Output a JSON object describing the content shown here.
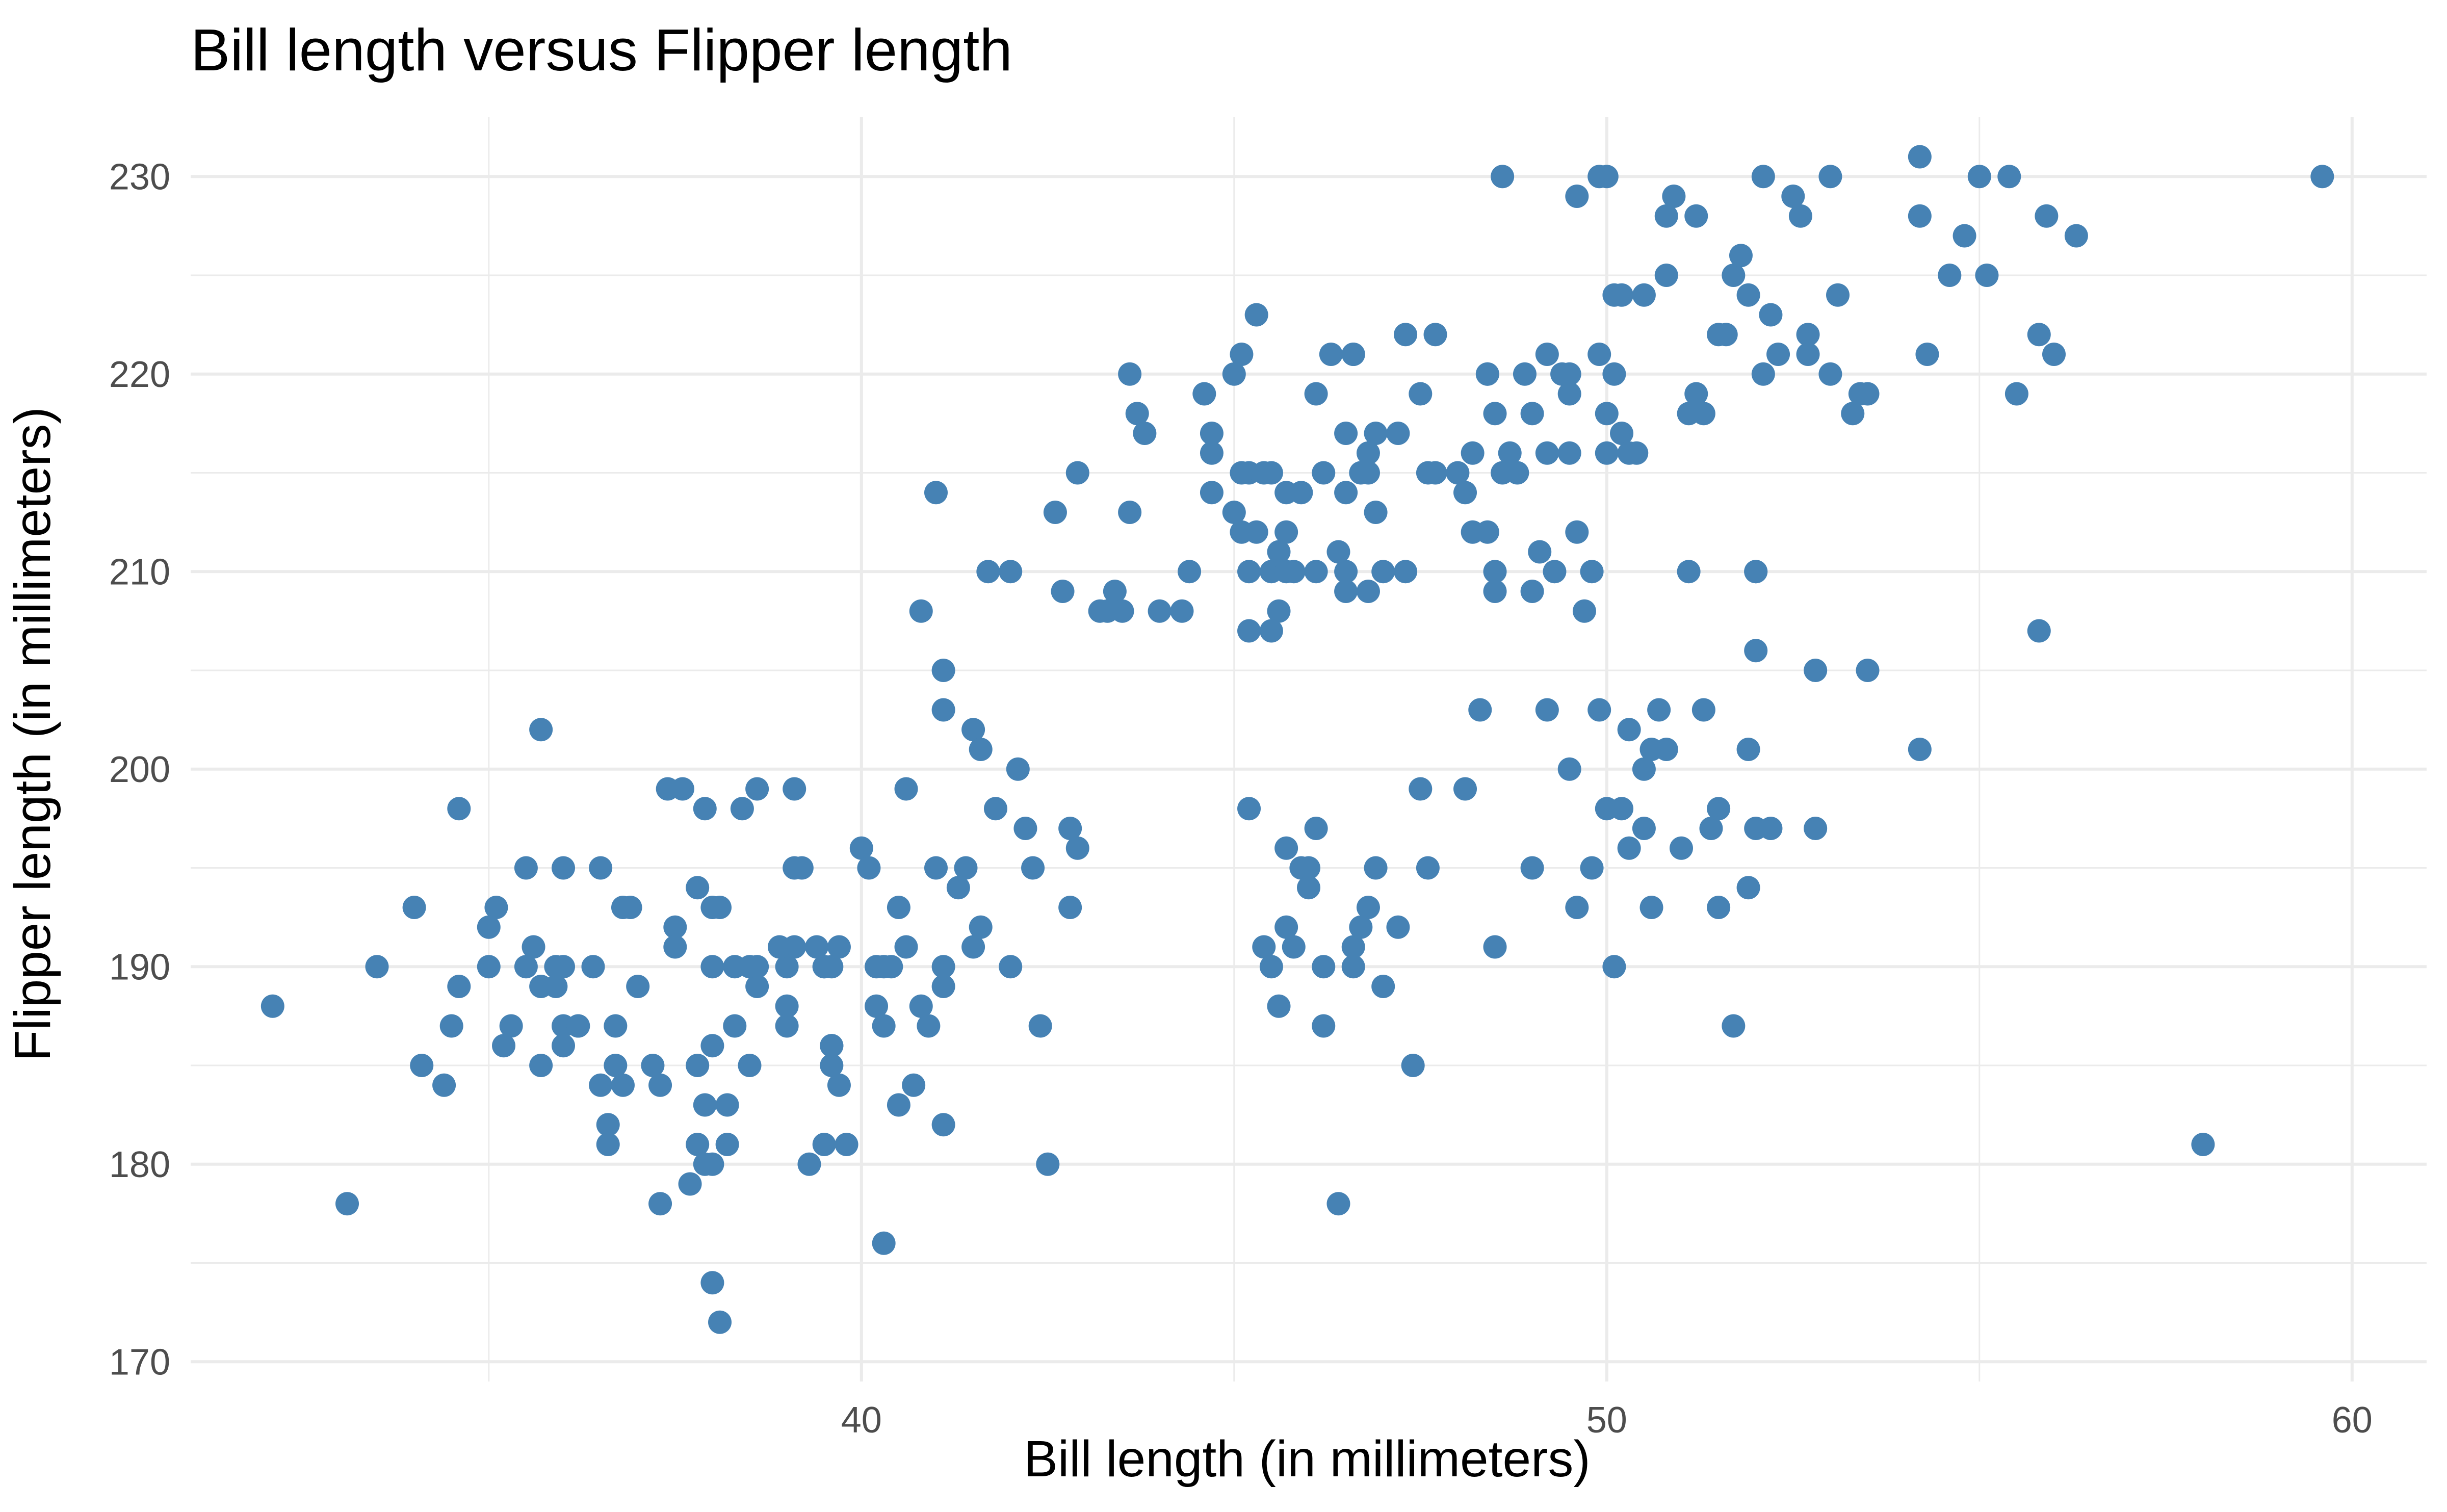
{
  "chart_data": {
    "type": "scatter",
    "title": "Bill length versus Flipper length",
    "xlabel": "Bill length (in millimeters)",
    "ylabel": "Flipper length (in millimeters)",
    "xlim": [
      31.0,
      61.0
    ],
    "ylim": [
      169.0,
      233.0
    ],
    "xticks": [
      40,
      50,
      60
    ],
    "xtick_labels": [
      "40",
      "50",
      "60"
    ],
    "yticks": [
      170,
      180,
      190,
      200,
      210,
      220,
      230
    ],
    "ytick_labels": [
      "170",
      "180",
      "190",
      "200",
      "210",
      "220",
      "230"
    ],
    "grid": true,
    "legend": "none",
    "point_color": "#4682b4",
    "points": [
      [
        32.1,
        188
      ],
      [
        33.1,
        178
      ],
      [
        33.5,
        190
      ],
      [
        34.0,
        193
      ],
      [
        34.1,
        185
      ],
      [
        34.4,
        184
      ],
      [
        34.5,
        187
      ],
      [
        34.6,
        198
      ],
      [
        34.6,
        189
      ],
      [
        35.0,
        190
      ],
      [
        35.0,
        192
      ],
      [
        35.1,
        193
      ],
      [
        35.2,
        186
      ],
      [
        35.3,
        187
      ],
      [
        35.5,
        195
      ],
      [
        35.5,
        190
      ],
      [
        35.6,
        191
      ],
      [
        35.7,
        202
      ],
      [
        35.7,
        189
      ],
      [
        35.7,
        185
      ],
      [
        35.9,
        190
      ],
      [
        35.9,
        189
      ],
      [
        36.0,
        195
      ],
      [
        36.0,
        190
      ],
      [
        36.0,
        187
      ],
      [
        36.0,
        186
      ],
      [
        36.2,
        187
      ],
      [
        36.2,
        187
      ],
      [
        36.4,
        190
      ],
      [
        36.5,
        195
      ],
      [
        36.5,
        184
      ],
      [
        36.6,
        182
      ],
      [
        36.6,
        181
      ],
      [
        36.7,
        187
      ],
      [
        36.7,
        185
      ],
      [
        36.8,
        193
      ],
      [
        36.8,
        184
      ],
      [
        36.9,
        193
      ],
      [
        37.0,
        189
      ],
      [
        37.2,
        185
      ],
      [
        37.3,
        178
      ],
      [
        37.3,
        184
      ],
      [
        37.4,
        199
      ],
      [
        37.5,
        192
      ],
      [
        37.5,
        191
      ],
      [
        37.6,
        199
      ],
      [
        37.7,
        179
      ],
      [
        37.8,
        194
      ],
      [
        37.8,
        185
      ],
      [
        37.8,
        181
      ],
      [
        37.9,
        198
      ],
      [
        37.9,
        183
      ],
      [
        37.9,
        180
      ],
      [
        38.0,
        193
      ],
      [
        38.0,
        190
      ],
      [
        38.0,
        186
      ],
      [
        38.0,
        174
      ],
      [
        38.1,
        193
      ],
      [
        38.0,
        180
      ],
      [
        38.1,
        172
      ],
      [
        38.2,
        181
      ],
      [
        38.3,
        190
      ],
      [
        38.3,
        187
      ],
      [
        38.4,
        198
      ],
      [
        38.5,
        190
      ],
      [
        38.5,
        185
      ],
      [
        38.6,
        189
      ],
      [
        38.6,
        190
      ],
      [
        39.0,
        188
      ],
      [
        39.0,
        190
      ],
      [
        39.1,
        191
      ],
      [
        39.1,
        199
      ],
      [
        39.2,
        195
      ],
      [
        39.3,
        180
      ],
      [
        39.4,
        191
      ],
      [
        39.5,
        190
      ],
      [
        39.5,
        181
      ],
      [
        39.6,
        190
      ],
      [
        39.6,
        186
      ],
      [
        39.6,
        185
      ],
      [
        39.7,
        191
      ],
      [
        39.8,
        181
      ],
      [
        40.0,
        196
      ],
      [
        40.1,
        195
      ],
      [
        40.2,
        190
      ],
      [
        40.3,
        190
      ],
      [
        40.4,
        190
      ],
      [
        40.6,
        191
      ],
      [
        39.5,
        190
      ],
      [
        39.0,
        187
      ],
      [
        38.2,
        183
      ],
      [
        38.6,
        199
      ],
      [
        38.9,
        191
      ],
      [
        39.1,
        195
      ],
      [
        39.6,
        186
      ],
      [
        40.5,
        193
      ],
      [
        40.9,
        187
      ],
      [
        40.6,
        199
      ],
      [
        40.8,
        188
      ],
      [
        41.0,
        195
      ],
      [
        41.1,
        190
      ],
      [
        41.1,
        189
      ],
      [
        41.1,
        182
      ],
      [
        41.3,
        194
      ],
      [
        41.4,
        195
      ],
      [
        41.5,
        191
      ],
      [
        41.6,
        192
      ],
      [
        41.1,
        205
      ],
      [
        41.1,
        203
      ],
      [
        41.5,
        202
      ],
      [
        41.6,
        201
      ],
      [
        42.2,
        197
      ],
      [
        42.3,
        195
      ],
      [
        42.4,
        187
      ],
      [
        42.5,
        180
      ],
      [
        42.8,
        197
      ],
      [
        42.9,
        196
      ],
      [
        42.8,
        193
      ],
      [
        42.0,
        190
      ],
      [
        41.8,
        198
      ],
      [
        42.1,
        200
      ],
      [
        40.3,
        176
      ],
      [
        40.5,
        183
      ],
      [
        40.7,
        184
      ],
      [
        40.3,
        187
      ],
      [
        39.6,
        186
      ],
      [
        39.7,
        184
      ],
      [
        40.2,
        188
      ],
      [
        41.0,
        214
      ],
      [
        40.8,
        208
      ],
      [
        41.7,
        210
      ],
      [
        42.0,
        210
      ],
      [
        42.6,
        213
      ],
      [
        42.7,
        209
      ],
      [
        42.9,
        215
      ],
      [
        43.2,
        208
      ],
      [
        43.3,
        208
      ],
      [
        43.4,
        209
      ],
      [
        43.5,
        208
      ],
      [
        43.6,
        220
      ],
      [
        43.6,
        213
      ],
      [
        43.7,
        218
      ],
      [
        43.8,
        217
      ],
      [
        44.0,
        208
      ],
      [
        44.3,
        208
      ],
      [
        44.4,
        210
      ],
      [
        44.6,
        219
      ],
      [
        44.7,
        217
      ],
      [
        44.7,
        216
      ],
      [
        44.7,
        214
      ],
      [
        45.0,
        220
      ],
      [
        45.0,
        213
      ],
      [
        45.1,
        212
      ],
      [
        45.2,
        215
      ],
      [
        45.2,
        210
      ],
      [
        45.2,
        207
      ],
      [
        45.3,
        212
      ],
      [
        45.4,
        215
      ],
      [
        45.5,
        215
      ],
      [
        45.5,
        210
      ],
      [
        45.6,
        208
      ],
      [
        45.6,
        211
      ],
      [
        45.7,
        214
      ],
      [
        45.7,
        212
      ],
      [
        45.7,
        210
      ],
      [
        45.8,
        210
      ],
      [
        45.9,
        214
      ],
      [
        46.1,
        219
      ],
      [
        46.1,
        210
      ],
      [
        46.2,
        215
      ],
      [
        46.4,
        211
      ],
      [
        46.5,
        214
      ],
      [
        46.5,
        210
      ],
      [
        46.5,
        209
      ],
      [
        46.6,
        221
      ],
      [
        46.7,
        215
      ],
      [
        46.8,
        215
      ],
      [
        46.8,
        216
      ],
      [
        46.9,
        217
      ],
      [
        46.9,
        213
      ],
      [
        47.0,
        210
      ],
      [
        47.2,
        217
      ],
      [
        47.3,
        210
      ],
      [
        47.5,
        219
      ],
      [
        47.6,
        215
      ],
      [
        47.7,
        222
      ],
      [
        48.0,
        215
      ],
      [
        48.1,
        214
      ],
      [
        48.2,
        216
      ],
      [
        48.2,
        212
      ],
      [
        48.4,
        212
      ],
      [
        48.5,
        218
      ],
      [
        48.5,
        209
      ],
      [
        48.6,
        215
      ],
      [
        48.7,
        216
      ],
      [
        48.8,
        215
      ],
      [
        49.0,
        209
      ],
      [
        49.1,
        211
      ],
      [
        49.2,
        221
      ],
      [
        49.3,
        210
      ],
      [
        49.4,
        220
      ],
      [
        49.5,
        220
      ],
      [
        49.5,
        219
      ],
      [
        49.6,
        212
      ],
      [
        49.7,
        208
      ],
      [
        49.8,
        210
      ],
      [
        49.9,
        221
      ],
      [
        50.0,
        218
      ],
      [
        50.0,
        216
      ],
      [
        50.1,
        224
      ],
      [
        50.2,
        217
      ],
      [
        50.3,
        216
      ],
      [
        50.4,
        216
      ],
      [
        50.5,
        224
      ],
      [
        50.8,
        225
      ],
      [
        50.9,
        229
      ],
      [
        51.1,
        218
      ],
      [
        51.2,
        219
      ],
      [
        51.3,
        218
      ],
      [
        51.5,
        222
      ],
      [
        51.6,
        222
      ],
      [
        51.7,
        225
      ],
      [
        51.8,
        226
      ],
      [
        52.1,
        220
      ],
      [
        52.2,
        223
      ],
      [
        52.3,
        221
      ],
      [
        52.5,
        229
      ],
      [
        52.6,
        228
      ],
      [
        52.7,
        222
      ],
      [
        53.0,
        220
      ],
      [
        53.1,
        224
      ],
      [
        53.3,
        218
      ],
      [
        53.4,
        219
      ],
      [
        54.3,
        221
      ],
      [
        54.6,
        225
      ],
      [
        54.8,
        227
      ],
      [
        55.1,
        225
      ],
      [
        55.5,
        219
      ],
      [
        55.8,
        222
      ],
      [
        56.0,
        221
      ],
      [
        56.3,
        227
      ],
      [
        48.6,
        230
      ],
      [
        49.6,
        229
      ],
      [
        50.2,
        224
      ],
      [
        50.8,
        228
      ],
      [
        51.2,
        228
      ],
      [
        51.9,
        224
      ],
      [
        52.1,
        230
      ],
      [
        53.0,
        230
      ],
      [
        54.2,
        228
      ],
      [
        55.0,
        230
      ],
      [
        55.4,
        230
      ],
      [
        59.6,
        230
      ],
      [
        55.9,
        228
      ],
      [
        54.2,
        231
      ],
      [
        49.9,
        230
      ],
      [
        50.0,
        230
      ],
      [
        45.3,
        223
      ],
      [
        46.3,
        221
      ],
      [
        46.6,
        221
      ],
      [
        47.3,
        222
      ],
      [
        47.7,
        215
      ],
      [
        48.4,
        220
      ],
      [
        48.9,
        220
      ],
      [
        49.0,
        218
      ],
      [
        49.5,
        216
      ],
      [
        49.2,
        216
      ],
      [
        50.1,
        220
      ],
      [
        51.1,
        210
      ],
      [
        52.0,
        210
      ],
      [
        53.5,
        219
      ],
      [
        52.7,
        221
      ],
      [
        48.4,
        220
      ],
      [
        48.5,
        210
      ],
      [
        46.5,
        217
      ],
      [
        46.8,
        209
      ],
      [
        45.5,
        207
      ],
      [
        45.1,
        215
      ],
      [
        45.1,
        221
      ],
      [
        45.2,
        198
      ],
      [
        45.4,
        191
      ],
      [
        45.7,
        196
      ],
      [
        45.9,
        195
      ],
      [
        46.0,
        194
      ],
      [
        46.0,
        195
      ],
      [
        46.1,
        197
      ],
      [
        46.2,
        187
      ],
      [
        46.4,
        178
      ],
      [
        46.6,
        190
      ],
      [
        46.6,
        191
      ],
      [
        46.7,
        192
      ],
      [
        46.8,
        193
      ],
      [
        46.9,
        195
      ],
      [
        47.0,
        189
      ],
      [
        47.2,
        192
      ],
      [
        47.4,
        185
      ],
      [
        47.5,
        199
      ],
      [
        47.6,
        195
      ],
      [
        48.1,
        199
      ],
      [
        48.3,
        203
      ],
      [
        48.5,
        191
      ],
      [
        49.0,
        195
      ],
      [
        49.2,
        203
      ],
      [
        49.5,
        200
      ],
      [
        49.6,
        193
      ],
      [
        49.8,
        195
      ],
      [
        50.0,
        198
      ],
      [
        50.1,
        190
      ],
      [
        50.2,
        198
      ],
      [
        50.3,
        196
      ],
      [
        50.5,
        197
      ],
      [
        50.6,
        201
      ],
      [
        50.6,
        193
      ],
      [
        50.7,
        203
      ],
      [
        50.8,
        201
      ],
      [
        51.0,
        196
      ],
      [
        51.3,
        203
      ],
      [
        51.4,
        197
      ],
      [
        51.5,
        193
      ],
      [
        51.5,
        198
      ],
      [
        51.7,
        187
      ],
      [
        51.9,
        201
      ],
      [
        52.0,
        197
      ],
      [
        52.2,
        197
      ],
      [
        52.8,
        197
      ],
      [
        52.0,
        206
      ],
      [
        52.0,
        210
      ],
      [
        53.5,
        205
      ],
      [
        52.8,
        205
      ],
      [
        54.2,
        201
      ],
      [
        55.8,
        207
      ],
      [
        58.0,
        181
      ],
      [
        50.5,
        200
      ],
      [
        50.3,
        202
      ],
      [
        49.9,
        203
      ],
      [
        51.9,
        194
      ],
      [
        45.6,
        188
      ],
      [
        45.8,
        191
      ],
      [
        45.7,
        192
      ],
      [
        45.5,
        190
      ],
      [
        46.2,
        190
      ]
    ]
  }
}
